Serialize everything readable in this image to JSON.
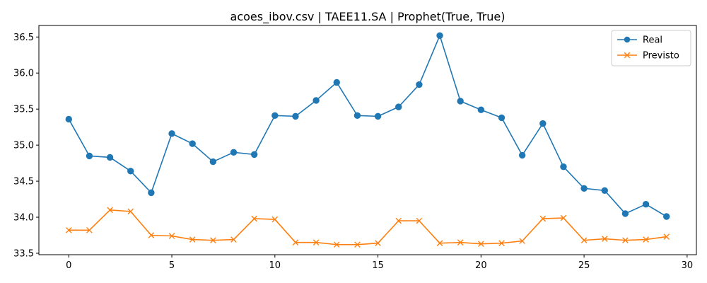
{
  "chart_data": {
    "type": "line",
    "title": "acoes_ibov.csv | TAEE11.SA | Prophet(True, True)",
    "xlabel": "",
    "ylabel": "",
    "xlim": [
      -1.45,
      30.45
    ],
    "ylim": [
      33.48,
      36.66
    ],
    "xticks": [
      0,
      5,
      10,
      15,
      20,
      25,
      30
    ],
    "yticks": [
      33.5,
      34.0,
      34.5,
      35.0,
      35.5,
      36.0,
      36.5
    ],
    "grid": false,
    "legend_position": "top-right",
    "x": [
      0,
      1,
      2,
      3,
      4,
      5,
      6,
      7,
      8,
      9,
      10,
      11,
      12,
      13,
      14,
      15,
      16,
      17,
      18,
      19,
      20,
      21,
      22,
      23,
      24,
      25,
      26,
      27,
      28,
      29
    ],
    "series": [
      {
        "name": "Real",
        "color": "#1f77b4",
        "marker": "circle",
        "values": [
          35.36,
          34.85,
          34.83,
          34.64,
          34.34,
          35.16,
          35.02,
          34.77,
          34.9,
          34.87,
          35.41,
          35.4,
          35.62,
          35.87,
          35.41,
          35.4,
          35.53,
          35.84,
          36.52,
          35.61,
          35.49,
          35.38,
          34.86,
          35.3,
          34.7,
          34.4,
          34.37,
          34.05,
          34.18,
          34.01
        ]
      },
      {
        "name": "Previsto",
        "color": "#ff7f0e",
        "marker": "x",
        "values": [
          33.82,
          33.82,
          34.1,
          34.08,
          33.75,
          33.74,
          33.69,
          33.68,
          33.69,
          33.98,
          33.97,
          33.65,
          33.65,
          33.62,
          33.62,
          33.64,
          33.95,
          33.95,
          33.64,
          33.65,
          33.63,
          33.64,
          33.67,
          33.98,
          33.99,
          33.68,
          33.7,
          33.68,
          33.69,
          33.73
        ]
      }
    ]
  }
}
